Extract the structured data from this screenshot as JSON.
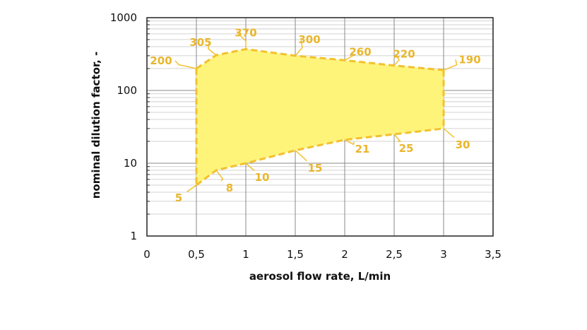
{
  "chart_data": {
    "type": "area",
    "title": "",
    "xlabel": "aerosol flow rate, L/min",
    "ylabel": "nominal dilution factor, -",
    "xlim": [
      0,
      3.5
    ],
    "ylim": [
      1,
      1000
    ],
    "yscale": "log",
    "grid": true,
    "x_ticks": [
      0,
      0.5,
      1,
      1.5,
      2,
      2.5,
      3,
      3.5
    ],
    "x_tick_labels": [
      "0",
      "0,5",
      "1",
      "1,5",
      "2",
      "2,5",
      "3",
      "3,5"
    ],
    "y_ticks": [
      1,
      10,
      100,
      1000
    ],
    "y_tick_labels": [
      "1",
      "10",
      "100",
      "1000"
    ],
    "colors": {
      "fill": "#fff47a",
      "line": "#f2c12e",
      "annotation": "#e9b62c",
      "grid_major": "#888888",
      "grid_minor": "#c4c4c4",
      "axis": "#222222"
    },
    "series": [
      {
        "x": [
          0.5,
          0.7,
          1,
          1.5,
          2,
          2.5,
          3
        ],
        "values": [
          200,
          305,
          370,
          300,
          260,
          220,
          190
        ],
        "labels": [
          "200",
          "305",
          "370",
          "300",
          "260",
          "220",
          "190"
        ]
      },
      {
        "x": [
          0.5,
          0.7,
          1,
          1.5,
          2,
          2.5,
          3
        ],
        "values": [
          5,
          8,
          10,
          15,
          21,
          25,
          30
        ],
        "labels": [
          "5",
          "8",
          "10",
          "15",
          "21",
          "25",
          "30"
        ]
      }
    ]
  }
}
